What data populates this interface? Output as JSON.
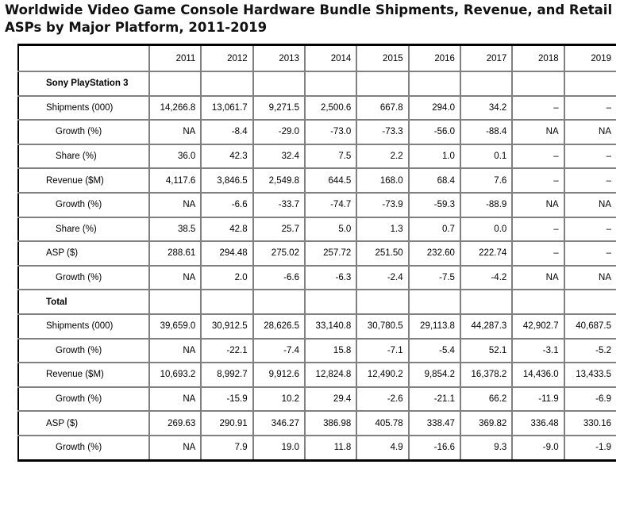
{
  "title": "Worldwide Video Game Console Hardware Bundle Shipments, Revenue, and Retail ASPs by Major Platform, 2011-2019",
  "years": [
    "2011",
    "2012",
    "2013",
    "2014",
    "2015",
    "2016",
    "2017",
    "2018",
    "2019"
  ],
  "rows": [
    {
      "label": "Sony PlayStation 3",
      "type": "section",
      "values": [
        "",
        "",
        "",
        "",
        "",
        "",
        "",
        "",
        ""
      ]
    },
    {
      "label": "Shipments (000)",
      "type": "main",
      "values": [
        "14,266.8",
        "13,061.7",
        "9,271.5",
        "2,500.6",
        "667.8",
        "294.0",
        "34.2",
        "–",
        "–"
      ]
    },
    {
      "label": "Growth (%)",
      "type": "sub",
      "values": [
        "NA",
        "-8.4",
        "-29.0",
        "-73.0",
        "-73.3",
        "-56.0",
        "-88.4",
        "NA",
        "NA"
      ]
    },
    {
      "label": "Share (%)",
      "type": "sub",
      "values": [
        "36.0",
        "42.3",
        "32.4",
        "7.5",
        "2.2",
        "1.0",
        "0.1",
        "–",
        "–"
      ]
    },
    {
      "label": "Revenue ($M)",
      "type": "main",
      "values": [
        "4,117.6",
        "3,846.5",
        "2,549.8",
        "644.5",
        "168.0",
        "68.4",
        "7.6",
        "–",
        "–"
      ]
    },
    {
      "label": "Growth (%)",
      "type": "sub",
      "values": [
        "NA",
        "-6.6",
        "-33.7",
        "-74.7",
        "-73.9",
        "-59.3",
        "-88.9",
        "NA",
        "NA"
      ]
    },
    {
      "label": "Share (%)",
      "type": "sub",
      "values": [
        "38.5",
        "42.8",
        "25.7",
        "5.0",
        "1.3",
        "0.7",
        "0.0",
        "–",
        "–"
      ]
    },
    {
      "label": "ASP ($)",
      "type": "main",
      "values": [
        "288.61",
        "294.48",
        "275.02",
        "257.72",
        "251.50",
        "232.60",
        "222.74",
        "–",
        "–"
      ]
    },
    {
      "label": "Growth (%)",
      "type": "sub",
      "values": [
        "NA",
        "2.0",
        "-6.6",
        "-6.3",
        "-2.4",
        "-7.5",
        "-4.2",
        "NA",
        "NA"
      ]
    },
    {
      "label": "Total",
      "type": "section",
      "values": [
        "",
        "",
        "",
        "",
        "",
        "",
        "",
        "",
        ""
      ]
    },
    {
      "label": "Shipments (000)",
      "type": "main",
      "values": [
        "39,659.0",
        "30,912.5",
        "28,626.5",
        "33,140.8",
        "30,780.5",
        "29,113.8",
        "44,287.3",
        "42,902.7",
        "40,687.5"
      ]
    },
    {
      "label": "Growth (%)",
      "type": "sub",
      "values": [
        "NA",
        "-22.1",
        "-7.4",
        "15.8",
        "-7.1",
        "-5.4",
        "52.1",
        "-3.1",
        "-5.2"
      ]
    },
    {
      "label": "Revenue ($M)",
      "type": "main",
      "values": [
        "10,693.2",
        "8,992.7",
        "9,912.6",
        "12,824.8",
        "12,490.2",
        "9,854.2",
        "16,378.2",
        "14,436.0",
        "13,433.5"
      ]
    },
    {
      "label": "Growth (%)",
      "type": "sub",
      "values": [
        "NA",
        "-15.9",
        "10.2",
        "29.4",
        "-2.6",
        "-21.1",
        "66.2",
        "-11.9",
        "-6.9"
      ]
    },
    {
      "label": "ASP ($)",
      "type": "main",
      "values": [
        "269.63",
        "290.91",
        "346.27",
        "386.98",
        "405.78",
        "338.47",
        "369.82",
        "336.48",
        "330.16"
      ]
    },
    {
      "label": "Growth (%)",
      "type": "sub",
      "values": [
        "NA",
        "7.9",
        "19.0",
        "11.8",
        "4.9",
        "-16.6",
        "9.3",
        "-9.0",
        "-1.9"
      ]
    }
  ]
}
